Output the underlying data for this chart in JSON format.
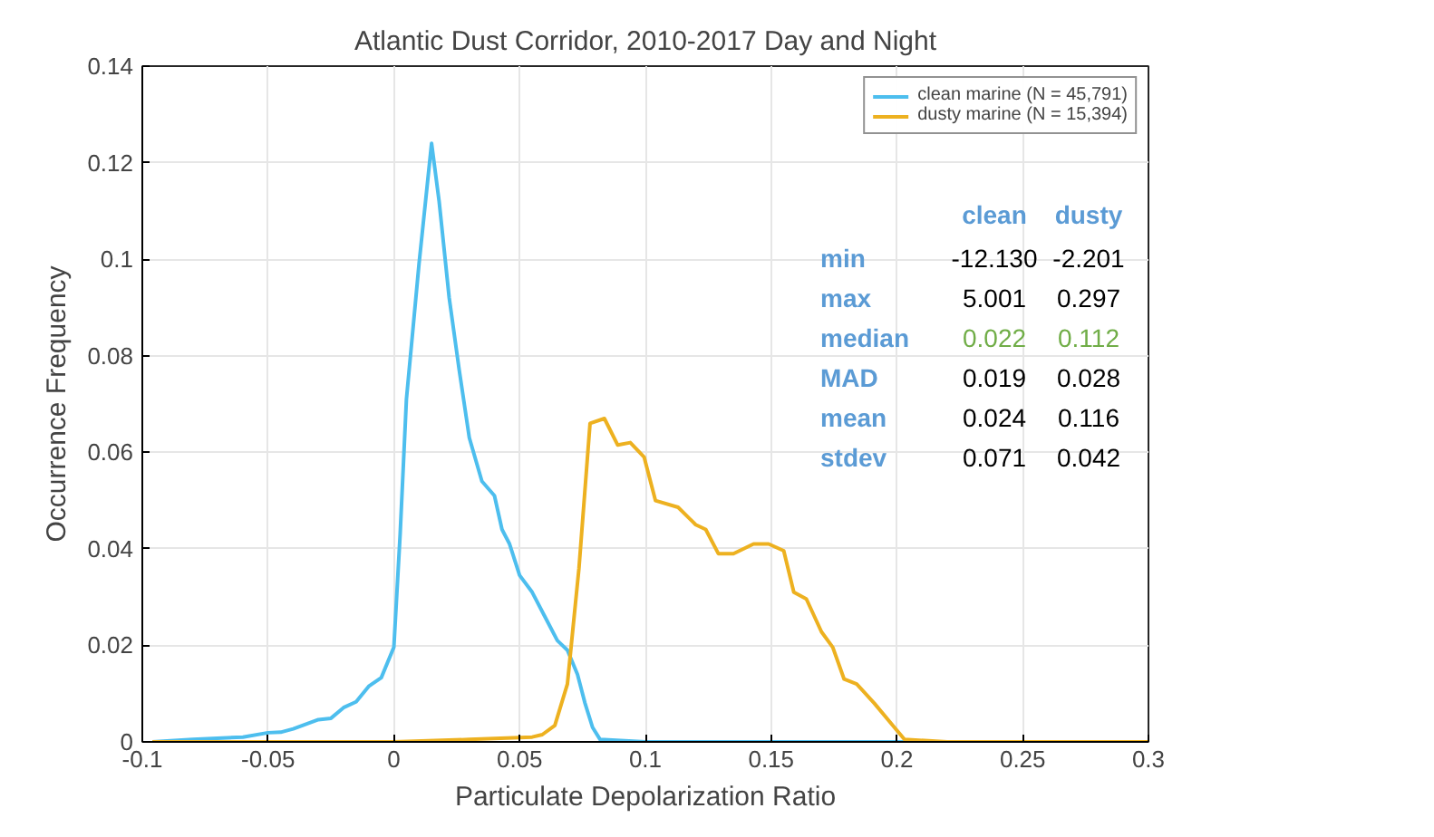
{
  "chart_data": {
    "type": "line",
    "title": "Atlantic Dust Corridor, 2010-2017 Day and Night",
    "xlabel": "Particulate Depolarization Ratio",
    "ylabel": "Occurrence Frequency",
    "xlim": [
      -0.1,
      0.3
    ],
    "ylim": [
      0,
      0.14
    ],
    "xticks": [
      -0.1,
      -0.05,
      0,
      0.05,
      0.1,
      0.15,
      0.2,
      0.25,
      0.3
    ],
    "yticks": [
      0,
      0.02,
      0.04,
      0.06,
      0.08,
      0.1,
      0.12,
      0.14
    ],
    "grid": true,
    "legend": "top right",
    "series": [
      {
        "name": "clean marine (N = 45,791)",
        "color": "#4dbeee",
        "x": [
          -0.096,
          -0.08,
          -0.06,
          -0.05,
          -0.045,
          -0.04,
          -0.03,
          -0.025,
          -0.02,
          -0.015,
          -0.01,
          -0.005,
          0,
          0.0025,
          0.005,
          0.01,
          0.015,
          0.018,
          0.022,
          0.026,
          0.03,
          0.035,
          0.04,
          0.043,
          0.046,
          0.05,
          0.055,
          0.06,
          0.065,
          0.069,
          0.073,
          0.076,
          0.079,
          0.082,
          0.1,
          0.15,
          0.2,
          0.3
        ],
        "values": [
          0,
          0.0005,
          0.001,
          0.0019,
          0.002,
          0.0027,
          0.0046,
          0.0049,
          0.0071,
          0.0083,
          0.0115,
          0.0133,
          0.0196,
          0.043,
          0.071,
          0.099,
          0.124,
          0.112,
          0.092,
          0.077,
          0.063,
          0.054,
          0.051,
          0.044,
          0.041,
          0.0345,
          0.031,
          0.026,
          0.021,
          0.019,
          0.014,
          0.008,
          0.003,
          0.0005,
          0,
          0,
          0,
          0
        ]
      },
      {
        "name": "dusty marine (N = 15,394)",
        "color": "#edb120",
        "x": [
          -0.096,
          -0.05,
          0,
          0.03,
          0.055,
          0.059,
          0.064,
          0.069,
          0.0736,
          0.078,
          0.0837,
          0.089,
          0.094,
          0.0995,
          0.104,
          0.113,
          0.12,
          0.124,
          0.129,
          0.135,
          0.143,
          0.149,
          0.155,
          0.159,
          0.164,
          0.17,
          0.1745,
          0.179,
          0.184,
          0.191,
          0.199,
          0.203,
          0.22,
          0.25,
          0.3
        ],
        "values": [
          0,
          0,
          0,
          0.0005,
          0.001,
          0.0015,
          0.0034,
          0.012,
          0.036,
          0.066,
          0.067,
          0.0615,
          0.062,
          0.059,
          0.05,
          0.0486,
          0.045,
          0.044,
          0.039,
          0.039,
          0.041,
          0.041,
          0.0396,
          0.031,
          0.0296,
          0.0228,
          0.0196,
          0.013,
          0.012,
          0.008,
          0.003,
          0.0005,
          0,
          0,
          0
        ]
      }
    ],
    "annotations": [
      "clean",
      "dusty",
      "min",
      "-12.130",
      "-2.201",
      "max",
      "5.001",
      "0.297",
      "median",
      "0.022",
      "0.112",
      "MAD",
      "0.019",
      "0.028",
      "mean",
      "0.024",
      "0.116",
      "stdev",
      "0.071",
      "0.042"
    ]
  }
}
